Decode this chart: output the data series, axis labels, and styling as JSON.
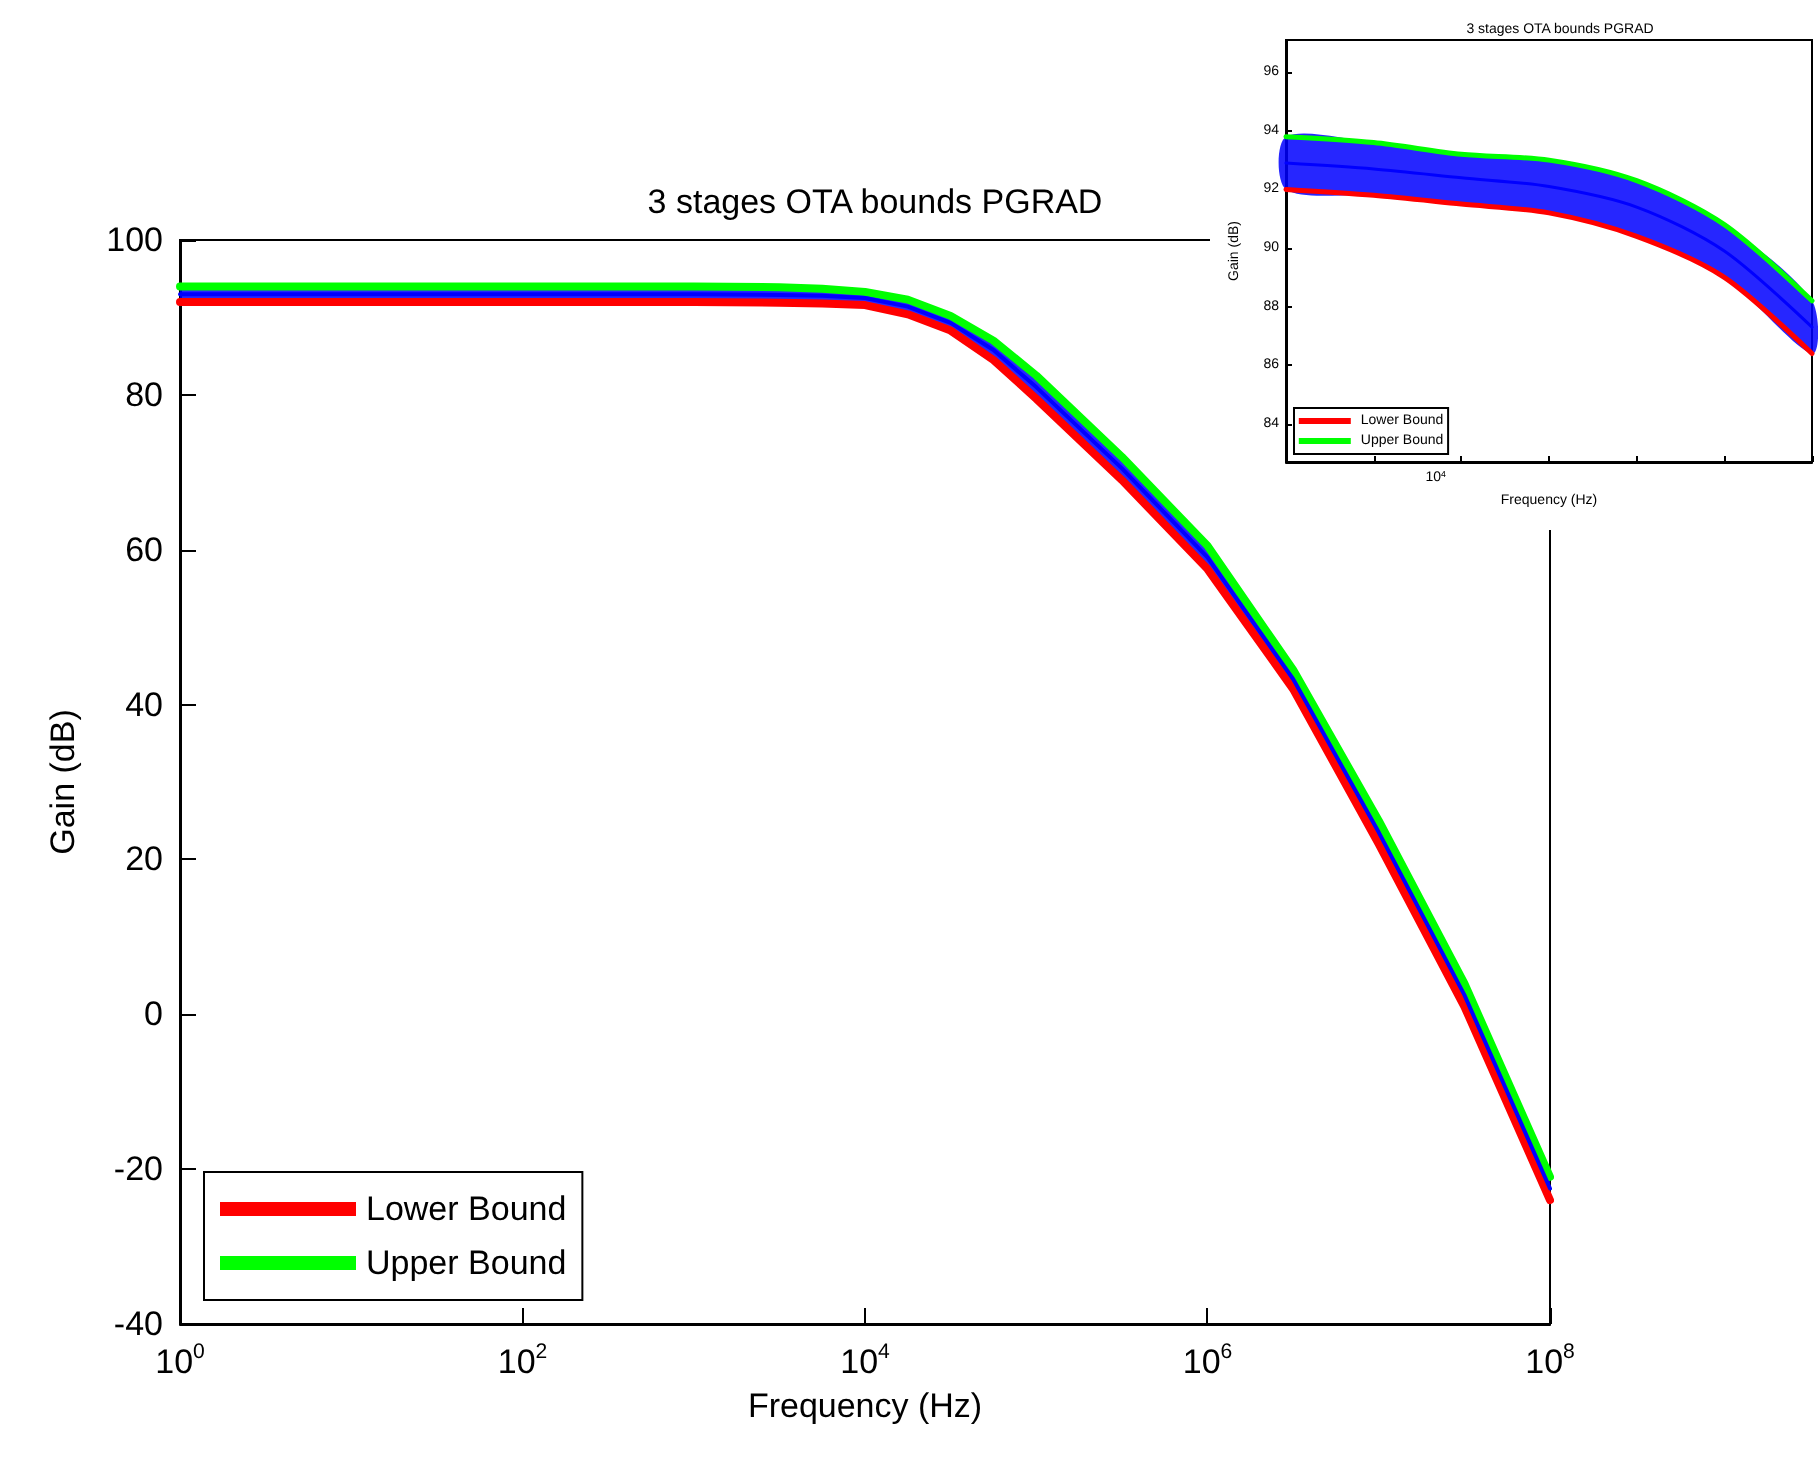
{
  "chart_data": [
    {
      "type": "line",
      "title": "3 stages OTA bounds PGRAD",
      "xlabel": "Frequency (Hz)",
      "ylabel": "Gain (dB)",
      "log": "x",
      "legend": "bottom left",
      "marker": "none",
      "line_style": "solid",
      "xlim": [
        1,
        100000000
      ],
      "xticks": [
        {
          "value": 1,
          "label": "10$^{0}$"
        },
        {
          "value": 100,
          "label": "10$^{2}$"
        },
        {
          "value": 10000,
          "label": "10$^{4}$"
        },
        {
          "value": 1000000,
          "label": "10$^{6}$"
        },
        {
          "value": 100000000,
          "label": "10$^{8}$"
        }
      ],
      "ylim": [
        -40,
        100
      ],
      "yticks": [
        -40,
        -20,
        0,
        20,
        40,
        60,
        80,
        100
      ],
      "x": [
        1,
        10,
        100,
        1000,
        3162,
        5623,
        10000,
        17783,
        31623,
        56234,
        100000,
        316228,
        1000000,
        3162278,
        10000000,
        31622777,
        100000000
      ],
      "series": [
        {
          "color": "#0000ff",
          "values": [
            93,
            93,
            93,
            93,
            92.9,
            92.8,
            92.5,
            91.4,
            89.3,
            85.8,
            81,
            70.5,
            59,
            43.3,
            23.5,
            2.5,
            -22.5
          ],
          "lower": [
            92,
            92,
            92,
            92,
            91.9,
            91.8,
            91.6,
            90.4,
            88.3,
            84.5,
            79.5,
            69,
            57.5,
            42,
            22,
            1,
            -24
          ],
          "upper": [
            94,
            94,
            94,
            94,
            93.9,
            93.7,
            93.3,
            92.3,
            90.2,
            87,
            82.5,
            72,
            60.5,
            44.5,
            25,
            4,
            -21
          ]
        },
        {
          "name": "Lower Bound",
          "color": "#ff0000",
          "values": [
            92,
            92,
            92,
            92,
            91.9,
            91.8,
            91.6,
            90.4,
            88.3,
            84.5,
            79.5,
            69,
            57.5,
            42,
            22,
            1,
            -24
          ]
        },
        {
          "name": "Upper Bound",
          "color": "#00ff00",
          "values": [
            94,
            94,
            94,
            94,
            93.9,
            93.7,
            93.3,
            92.3,
            90.2,
            87,
            82.5,
            72,
            60.5,
            44.5,
            25,
            4,
            -21
          ]
        }
      ]
    },
    {
      "type": "line",
      "title": "3 stages OTA bounds PGRAD",
      "xlabel": "Frequency (Hz)",
      "ylabel": "Gain (dB)",
      "legend": "bottom left",
      "marker": "none",
      "line_style": "solid",
      "annotations": [
        "10$^{4}$"
      ],
      "categories": [
        null,
        null,
        null,
        null,
        null,
        null,
        null
      ],
      "ylim": [
        82.7,
        97.1
      ],
      "yticks": [
        84,
        86,
        88,
        90,
        92,
        94,
        96
      ],
      "series": [
        {
          "color": "#0000ff",
          "values": [
            92.9,
            92.7,
            92.4,
            92.1,
            91.4,
            89.9,
            87.3
          ],
          "lower": [
            92,
            91.8,
            91.5,
            91.2,
            90.4,
            89,
            86.4
          ],
          "upper": [
            93.8,
            93.6,
            93.2,
            93,
            92.3,
            90.8,
            88.2
          ]
        },
        {
          "name": "Lower Bound",
          "color": "#ff0000",
          "values": [
            92,
            91.8,
            91.5,
            91.2,
            90.4,
            89,
            86.4
          ]
        },
        {
          "name": "Upper Bound",
          "color": "#00ff00",
          "values": [
            93.8,
            93.6,
            93.2,
            93,
            92.3,
            90.8,
            88.2
          ]
        }
      ]
    }
  ]
}
